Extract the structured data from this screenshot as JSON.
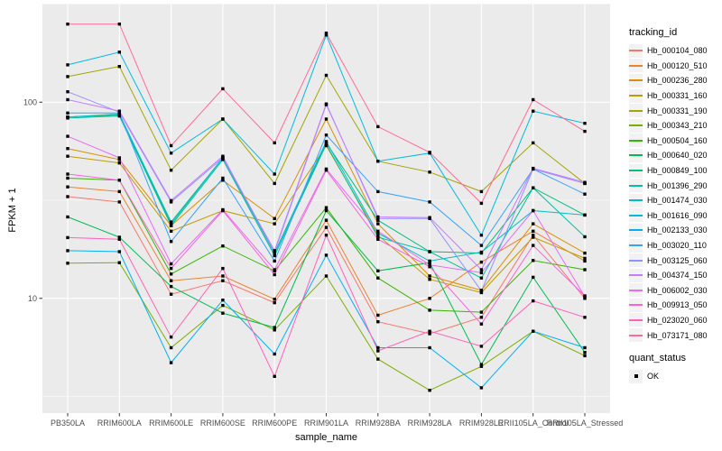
{
  "chart_data": {
    "type": "line",
    "title": "",
    "xlabel": "sample_name",
    "ylabel": "FPKM + 1",
    "y_scale": "log10",
    "ylim": [
      2.6,
      318
    ],
    "y_ticks": [
      100,
      10
    ],
    "grid": true,
    "legend_position": "right",
    "point": {
      "shape": "square",
      "color": "#000000"
    },
    "x_categories": [
      "PB350LA",
      "RRIM600LA",
      "RRIM600LE",
      "RRIM600SE",
      "RRIM600PE",
      "RRIM901LA",
      "RRIM928BA",
      "RRIM928LA",
      "RRIM928LE",
      "RRII105LA_Control",
      "RRII105LA_Stressed"
    ],
    "legends": {
      "tracking": {
        "title": "tracking_id"
      },
      "quant": {
        "title": "quant_status",
        "items": [
          "OK"
        ]
      }
    },
    "series": [
      {
        "name": "Hb_000104_080",
        "color": "#F8766D",
        "values": [
          33,
          31,
          10.5,
          12.3,
          9.5,
          23,
          7.6,
          6.6,
          8.0,
          21,
          10.0
        ]
      },
      {
        "name": "Hb_000120_510",
        "color": "#EA8331",
        "values": [
          37,
          35,
          12.3,
          13,
          9.9,
          25,
          8.2,
          10,
          15.3,
          22,
          15.5
        ]
      },
      {
        "name": "Hb_000236_280",
        "color": "#D89000",
        "values": [
          58,
          51,
          23.5,
          40,
          25.5,
          82,
          24,
          13,
          11,
          24,
          17
        ]
      },
      {
        "name": "Hb_000331_160",
        "color": "#C09B00",
        "values": [
          53,
          49,
          22,
          28,
          24,
          60,
          21,
          12.5,
          10.7,
          20.5,
          16
        ]
      },
      {
        "name": "Hb_000331_190",
        "color": "#A3A500",
        "values": [
          135,
          152,
          45,
          82,
          38.5,
          137,
          50,
          44,
          35,
          62,
          38.5
        ]
      },
      {
        "name": "Hb_000343_210",
        "color": "#7CAE00",
        "values": [
          15.1,
          15.2,
          5.6,
          9.2,
          6.9,
          13,
          4.9,
          3.4,
          4.5,
          6.8,
          5.1
        ]
      },
      {
        "name": "Hb_000504_160",
        "color": "#39B600",
        "values": [
          41,
          40,
          13.3,
          18.5,
          13.8,
          29,
          12.7,
          8.7,
          8.5,
          15.6,
          14
        ]
      },
      {
        "name": "Hb_000640_020",
        "color": "#00BB4E",
        "values": [
          26,
          20.5,
          11.5,
          8.4,
          7.1,
          28,
          13.8,
          15.2,
          4.6,
          12.8,
          5.3
        ]
      },
      {
        "name": "Hb_000849_100",
        "color": "#00BF7D",
        "values": [
          84,
          86,
          24,
          52,
          17,
          62,
          25,
          17.3,
          17,
          36.6,
          26.6
        ]
      },
      {
        "name": "Hb_001396_290",
        "color": "#00C1A3",
        "values": [
          83,
          85,
          23.5,
          51,
          16.5,
          61,
          20.5,
          17.3,
          12.7,
          36.6,
          20.6
        ]
      },
      {
        "name": "Hb_001474_030",
        "color": "#00BFC4",
        "values": [
          84,
          87,
          24.5,
          52,
          17,
          63,
          21.5,
          15.5,
          17.2,
          28,
          26.6
        ]
      },
      {
        "name": "Hb_001616_090",
        "color": "#00BAE0",
        "values": [
          155,
          180,
          55,
          82,
          43,
          220,
          50,
          55,
          21,
          90,
          78
        ]
      },
      {
        "name": "Hb_002133_030",
        "color": "#00B0F6",
        "values": [
          17.5,
          17.3,
          4.7,
          9.8,
          5.2,
          16.6,
          5.6,
          5.6,
          3.5,
          6.8,
          5.6
        ]
      },
      {
        "name": "Hb_003020_110",
        "color": "#35A2FF",
        "values": [
          88,
          88,
          19.5,
          41,
          15.5,
          68,
          35,
          31,
          18.6,
          45.6,
          34
        ]
      },
      {
        "name": "Hb_003125_060",
        "color": "#9590FF",
        "values": [
          113,
          89,
          31,
          52,
          17.5,
          98,
          25.5,
          25.5,
          10.9,
          45.6,
          38.5
        ]
      },
      {
        "name": "Hb_004374_150",
        "color": "#C77CFF",
        "values": [
          103,
          90,
          31.5,
          53,
          17.2,
          97,
          26,
          25.8,
          14,
          46,
          39
        ]
      },
      {
        "name": "Hb_006002_030",
        "color": "#E76BF3",
        "values": [
          67,
          52,
          15,
          28.3,
          14,
          45.6,
          22,
          14.8,
          13.5,
          28,
          10.2
        ]
      },
      {
        "name": "Hb_009913_050",
        "color": "#FA62DB",
        "values": [
          43,
          40,
          14.2,
          28,
          13.2,
          45,
          20,
          14.5,
          7.4,
          18.6,
          10.3
        ]
      },
      {
        "name": "Hb_023020_060",
        "color": "#FF62BC",
        "values": [
          20.4,
          20,
          6.35,
          14.2,
          4.0,
          21,
          5.4,
          6.8,
          5.7,
          9.7,
          8.0
        ]
      },
      {
        "name": "Hb_073171_080",
        "color": "#FF6A98",
        "values": [
          250,
          250,
          60,
          117,
          62,
          225,
          75,
          55.5,
          30.5,
          103,
          71
        ]
      }
    ]
  },
  "colors": {
    "panel_bg": "#EBEBEB",
    "grid": "#FFFFFF",
    "tick": "#333333",
    "tick_label": "#4D4D4D",
    "axis_title": "#000000",
    "legend_key_bg": "#F2F2F2",
    "point": "#000000"
  }
}
